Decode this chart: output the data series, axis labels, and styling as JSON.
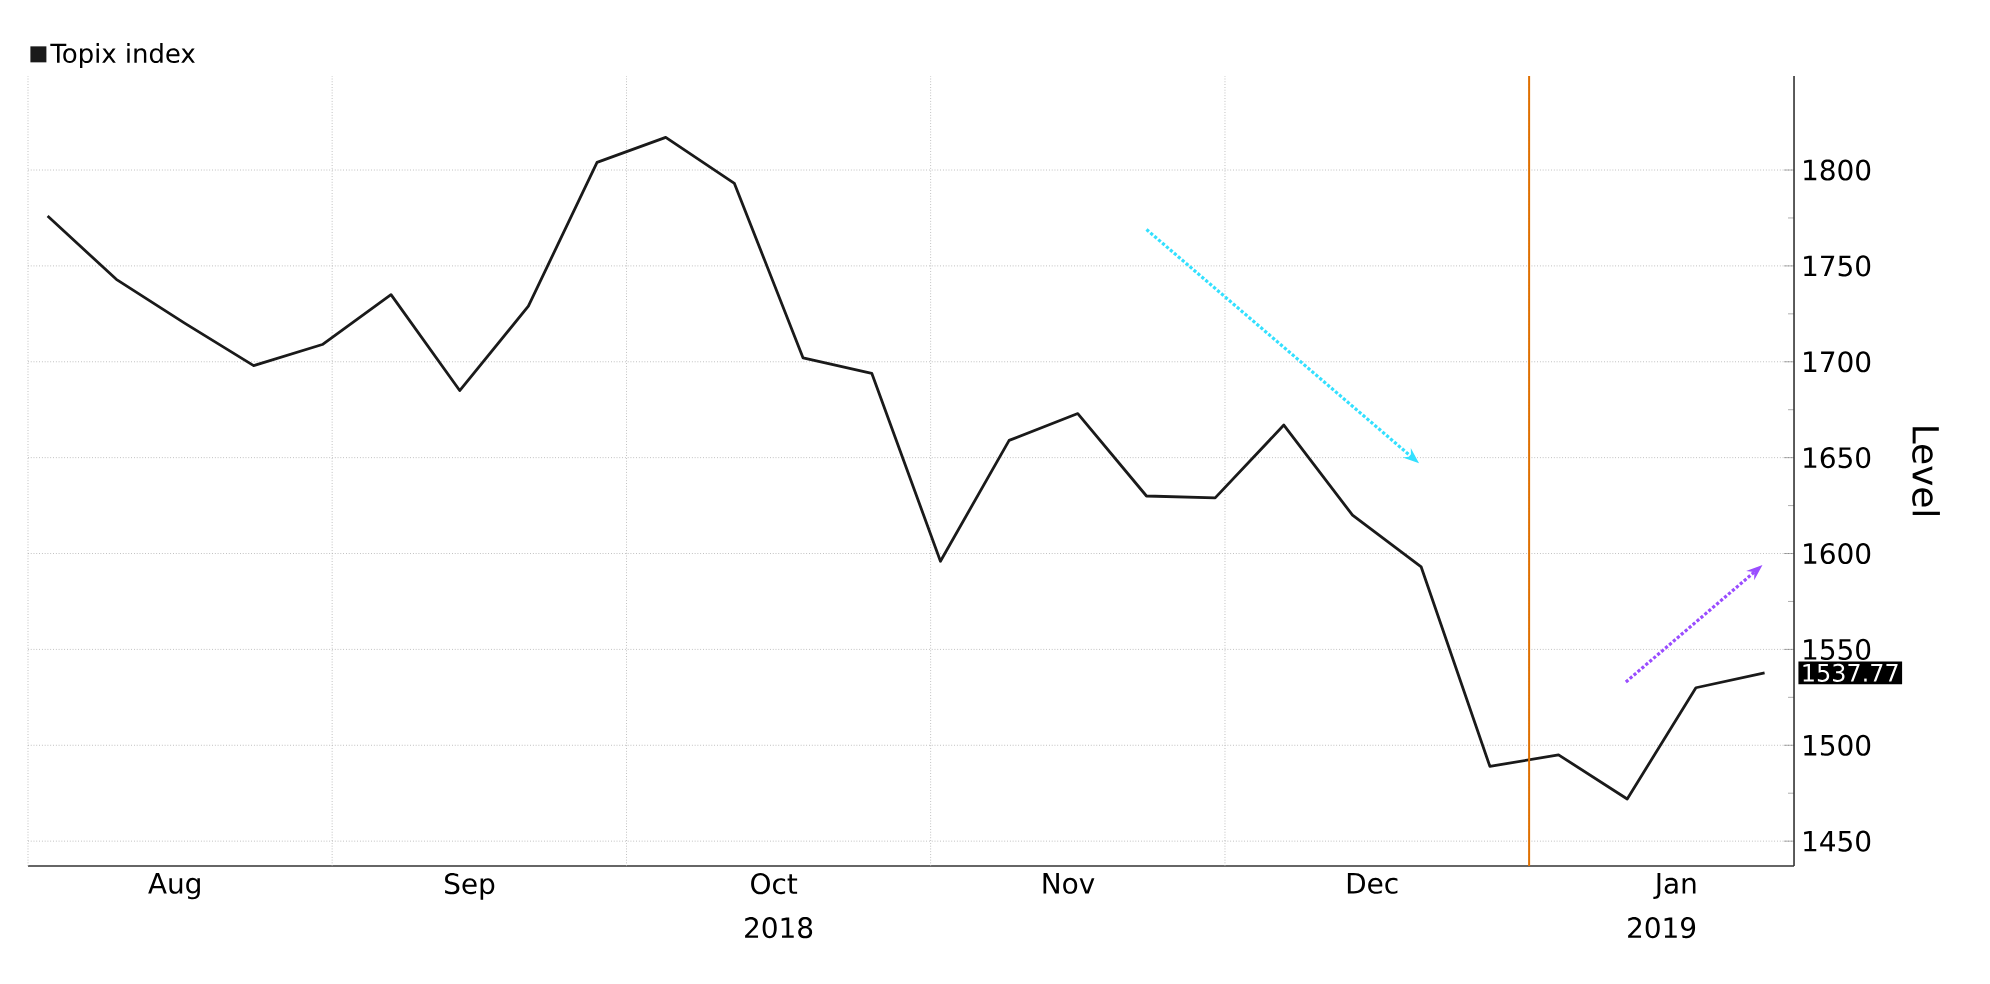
{
  "chart_data": {
    "type": "line",
    "ylabel": "Level",
    "legend": "top left",
    "grid": true,
    "line_style": "solid",
    "marker": "none",
    "x": [
      "2018-08-03",
      "2018-08-10",
      "2018-08-17",
      "2018-08-24",
      "2018-08-31",
      "2018-09-07",
      "2018-09-14",
      "2018-09-21",
      "2018-09-28",
      "2018-10-05",
      "2018-10-12",
      "2018-10-19",
      "2018-10-26",
      "2018-11-02",
      "2018-11-09",
      "2018-11-16",
      "2018-11-23",
      "2018-11-30",
      "2018-12-07",
      "2018-12-14",
      "2018-12-21",
      "2018-12-28",
      "2019-01-04",
      "2019-01-11",
      "2019-01-18",
      "2019-01-25"
    ],
    "series": [
      {
        "name": "Topix index",
        "color": "#1a1a1a",
        "values": [
          1776,
          1743,
          1720,
          1698,
          1709,
          1735,
          1685,
          1729,
          1804,
          1817,
          1793,
          1702,
          1694,
          1596,
          1659,
          1673,
          1630,
          1629,
          1667,
          1620,
          1593,
          1489,
          1495,
          1472,
          1530,
          1537.77
        ],
        "value_labels": [
          null,
          null,
          null,
          null,
          null,
          null,
          null,
          null,
          null,
          null,
          null,
          null,
          null,
          null,
          null,
          null,
          null,
          null,
          null,
          null,
          null,
          null,
          null,
          null,
          null,
          "1537.77"
        ]
      }
    ],
    "xlim": [
      "2018-08-01",
      "2019-01-28"
    ],
    "ylim": [
      1437,
      1849
    ],
    "xticks": [
      {
        "value": "2018-08-01",
        "label": null
      },
      {
        "value": "2018-08-16",
        "label": "Aug"
      },
      {
        "value": "2018-09-01",
        "label": null
      },
      {
        "value": "2018-09-15",
        "label": "Sep"
      },
      {
        "value": "2018-10-01",
        "label": null
      },
      {
        "value": "2018-10-16",
        "label": "Oct"
      },
      {
        "value": "2018-11-01",
        "label": null
      },
      {
        "value": "2018-11-15",
        "label": "Nov"
      },
      {
        "value": "2018-12-01",
        "label": null
      },
      {
        "value": "2018-12-16",
        "label": "Dec"
      },
      {
        "value": "2019-01-01",
        "label": null
      },
      {
        "value": "2019-01-16",
        "label": "Jan"
      }
    ],
    "yticks": [
      1450,
      1500,
      1550,
      1600,
      1650,
      1700,
      1750,
      1800
    ],
    "ref_lines": [
      {
        "axis": "x",
        "value": "2019-01-01",
        "color": "#e07000"
      }
    ],
    "annotations": [
      "2018",
      "2019"
    ]
  }
}
